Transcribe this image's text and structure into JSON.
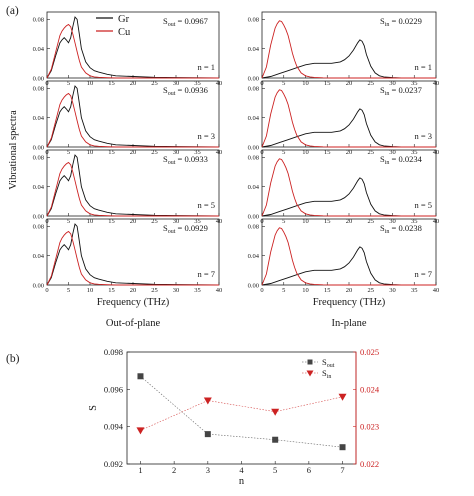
{
  "figure": {
    "panel_a_label": "(a)",
    "panel_b_label": "(b)",
    "y_label": "Vibrational spectra",
    "x_label_left": "Frequency (THz)",
    "x_label_right": "Frequency (THz)",
    "caption_left": "Out-of-plane",
    "caption_right": "In-plane",
    "legend": [
      {
        "name": "Gr",
        "color": "#111111"
      },
      {
        "name": "Cu",
        "color": "#cc2222"
      }
    ]
  },
  "chart_data": [
    {
      "type": "line",
      "title": "",
      "column": "Out-of-plane",
      "xlabel": "Frequency (THz)",
      "ylabel": "Vibrational spectra",
      "xlim": [
        0,
        40
      ],
      "ylim": [
        0,
        0.09
      ],
      "x_ticks": [
        "0",
        "5",
        "10",
        "15",
        "20",
        "25",
        "30",
        "35",
        "40"
      ],
      "y_ticks": [
        "0.00",
        "0.04",
        "0.08"
      ],
      "grid": false,
      "panels": [
        {
          "n_label": "n = 1",
          "s_label": "S",
          "s_sub": "out",
          "s_value": "= 0.0967"
        },
        {
          "n_label": "n = 3",
          "s_label": "S",
          "s_sub": "out",
          "s_value": "= 0.0936"
        },
        {
          "n_label": "n = 5",
          "s_label": "S",
          "s_sub": "out",
          "s_value": "= 0.0933"
        },
        {
          "n_label": "n = 7",
          "s_label": "S",
          "s_sub": "out",
          "s_value": "= 0.0929"
        }
      ],
      "series": [
        {
          "name": "Gr",
          "color": "#111111",
          "x": [
            0,
            1,
            2,
            3,
            3.5,
            4,
            4.5,
            5,
            5.5,
            6,
            6.5,
            7,
            7.5,
            8,
            9,
            10,
            11,
            12,
            14,
            16,
            20,
            25,
            30,
            40
          ],
          "y": [
            0,
            0.01,
            0.03,
            0.048,
            0.052,
            0.055,
            0.052,
            0.048,
            0.055,
            0.07,
            0.083,
            0.08,
            0.06,
            0.04,
            0.022,
            0.014,
            0.01,
            0.008,
            0.005,
            0.003,
            0.002,
            0.001,
            0.0005,
            0
          ]
        },
        {
          "name": "Cu",
          "color": "#cc2222",
          "x": [
            0,
            1,
            2,
            3,
            3.5,
            4,
            4.5,
            5,
            5.5,
            6,
            6.5,
            7,
            7.5,
            8,
            9,
            10,
            11,
            12,
            14,
            16,
            20,
            25,
            30,
            40
          ],
          "y": [
            0,
            0.012,
            0.035,
            0.058,
            0.064,
            0.068,
            0.071,
            0.073,
            0.07,
            0.06,
            0.048,
            0.036,
            0.024,
            0.015,
            0.007,
            0.003,
            0.0015,
            0.001,
            0.0004,
            0,
            0,
            0,
            0,
            0
          ]
        }
      ]
    },
    {
      "type": "line",
      "title": "",
      "column": "In-plane",
      "xlabel": "Frequency (THz)",
      "xlim": [
        0,
        40
      ],
      "ylim": [
        0,
        0.09
      ],
      "x_ticks": [
        "0",
        "5",
        "10",
        "15",
        "20",
        "25",
        "30",
        "35",
        "40"
      ],
      "grid": false,
      "panels": [
        {
          "n_label": "n = 1",
          "s_label": "S",
          "s_sub": "in",
          "s_value": "= 0.0229"
        },
        {
          "n_label": "n = 3",
          "s_label": "S",
          "s_sub": "in",
          "s_value": "= 0.0237"
        },
        {
          "n_label": "n = 5",
          "s_label": "S",
          "s_sub": "in",
          "s_value": "= 0.0234"
        },
        {
          "n_label": "n = 7",
          "s_label": "S",
          "s_sub": "in",
          "s_value": "= 0.0238"
        }
      ],
      "series": [
        {
          "name": "Gr",
          "color": "#111111",
          "x": [
            0,
            2,
            4,
            6,
            8,
            10,
            12,
            14,
            16,
            18,
            19,
            20,
            21,
            22,
            22.5,
            23,
            23.5,
            24,
            25,
            26,
            27,
            28,
            30,
            32,
            34,
            36,
            38,
            40
          ],
          "y": [
            0,
            0.002,
            0.006,
            0.01,
            0.014,
            0.018,
            0.02,
            0.02,
            0.02,
            0.022,
            0.025,
            0.03,
            0.038,
            0.048,
            0.052,
            0.05,
            0.044,
            0.032,
            0.016,
            0.007,
            0.003,
            0.0015,
            0.0005,
            0,
            0,
            0,
            0,
            0
          ]
        },
        {
          "name": "Cu",
          "color": "#cc2222",
          "x": [
            0,
            1,
            2,
            3,
            3.5,
            4,
            4.5,
            5,
            5.5,
            6,
            6.5,
            7,
            7.5,
            8,
            9,
            10,
            11,
            12,
            14,
            16,
            20,
            40
          ],
          "y": [
            0,
            0.015,
            0.045,
            0.068,
            0.074,
            0.078,
            0.077,
            0.072,
            0.066,
            0.058,
            0.046,
            0.034,
            0.024,
            0.016,
            0.007,
            0.003,
            0.0015,
            0.0008,
            0.0003,
            0,
            0,
            0
          ]
        }
      ]
    },
    {
      "type": "scatter",
      "title": "",
      "xlabel": "n",
      "ylabel": "S",
      "xlim": [
        0.6,
        7.4
      ],
      "x_ticks": [
        "1",
        "2",
        "3",
        "4",
        "5",
        "6",
        "7"
      ],
      "ylim": [
        0.092,
        0.098
      ],
      "y_ticks": [
        "0.092",
        "0.094",
        "0.096",
        "0.098"
      ],
      "ylim_right": [
        0.022,
        0.025
      ],
      "y_ticks_right": [
        "0.022",
        "0.023",
        "0.024",
        "0.025"
      ],
      "legend_position": "top-right",
      "series": [
        {
          "name": "S",
          "sub": "out",
          "color": "#444444",
          "marker": "square",
          "axis": "left",
          "x": [
            1,
            3,
            5,
            7
          ],
          "y": [
            0.0967,
            0.0936,
            0.0933,
            0.0929
          ]
        },
        {
          "name": "S",
          "sub": "in",
          "color": "#cc2222",
          "marker": "triangle-down",
          "axis": "right",
          "x": [
            1,
            3,
            5,
            7
          ],
          "y": [
            0.0229,
            0.0237,
            0.0234,
            0.0238
          ]
        }
      ]
    }
  ]
}
